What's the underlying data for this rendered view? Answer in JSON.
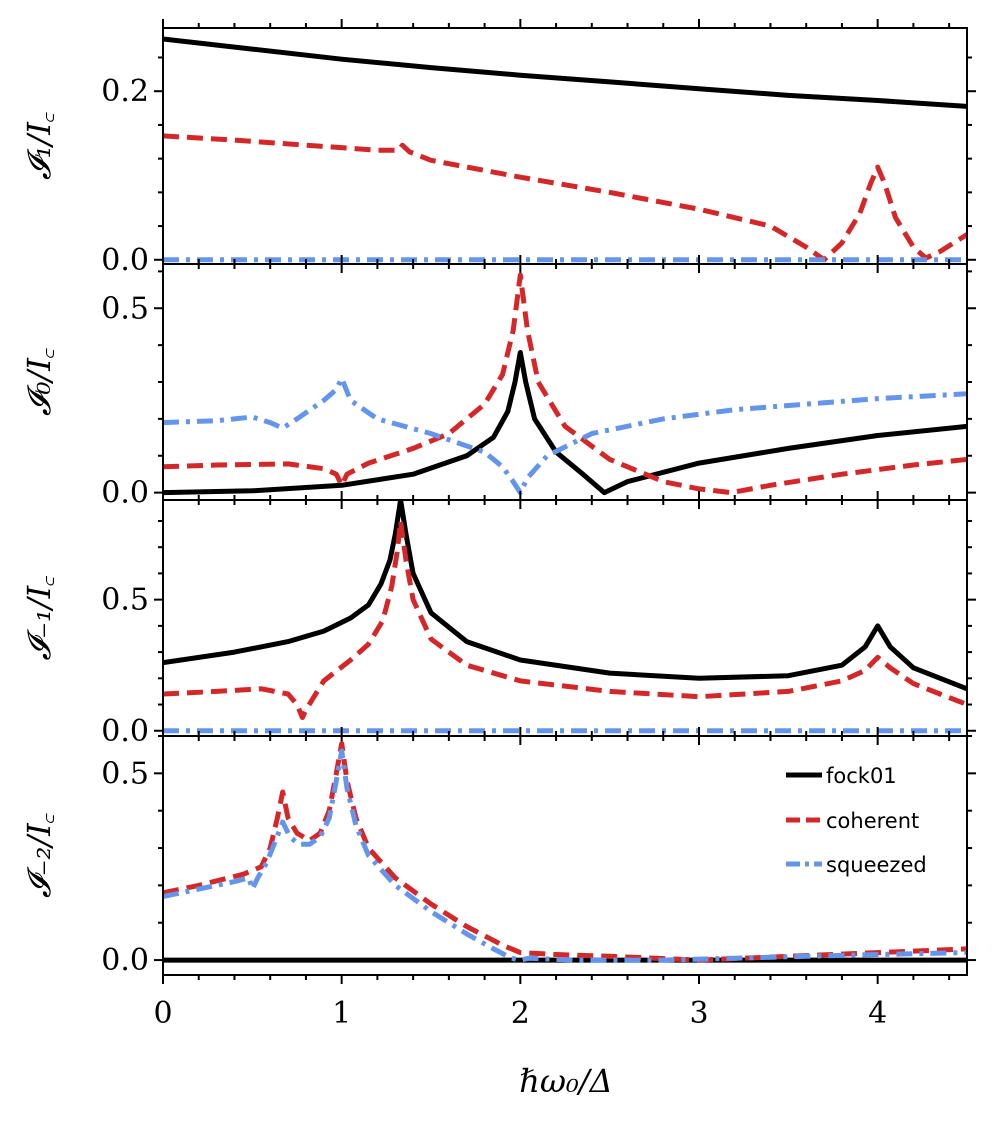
{
  "chart_data": {
    "type": "line",
    "title": "",
    "xlabel": "ℏω₀/Δ",
    "xlim": [
      0,
      4.5
    ],
    "x_ticks": [
      0,
      1,
      2,
      3,
      4
    ],
    "x_tick_labels": [
      "0",
      "1",
      "2",
      "3",
      "4"
    ],
    "legend": {
      "placement": "upper-right of bottom panel",
      "entries": [
        "fock01",
        "coherent",
        "squeezed"
      ]
    },
    "series_styles": [
      {
        "name": "fock01",
        "color": "#000000",
        "dash": "solid"
      },
      {
        "name": "coherent",
        "color": "#d62728",
        "dash": "dashed"
      },
      {
        "name": "squeezed",
        "color": "#6495ed",
        "dash": "dashdot"
      }
    ],
    "panels": [
      {
        "id": "I1",
        "ylabel": "𝓘₁/I꜀",
        "ylim": [
          -0.005,
          0.275
        ],
        "y_ticks": [
          0.0,
          0.2
        ],
        "y_tick_labels": [
          "0.0",
          "0.2"
        ],
        "series": [
          {
            "name": "fock01",
            "points": [
              [
                0,
                0.262
              ],
              [
                0.5,
                0.25
              ],
              [
                1,
                0.238
              ],
              [
                1.5,
                0.228
              ],
              [
                2,
                0.219
              ],
              [
                2.5,
                0.211
              ],
              [
                3,
                0.203
              ],
              [
                3.5,
                0.195
              ],
              [
                4,
                0.189
              ],
              [
                4.5,
                0.182
              ]
            ]
          },
          {
            "name": "coherent",
            "points": [
              [
                0,
                0.147
              ],
              [
                0.4,
                0.142
              ],
              [
                0.8,
                0.136
              ],
              [
                1.2,
                0.13
              ],
              [
                1.32,
                0.13
              ],
              [
                1.34,
                0.136
              ],
              [
                1.38,
                0.128
              ],
              [
                1.5,
                0.118
              ],
              [
                2,
                0.098
              ],
              [
                2.5,
                0.08
              ],
              [
                3,
                0.06
              ],
              [
                3.4,
                0.04
              ],
              [
                3.6,
                0.015
              ],
              [
                3.7,
                0.0
              ],
              [
                3.8,
                0.02
              ],
              [
                3.9,
                0.055
              ],
              [
                3.96,
                0.09
              ],
              [
                4.0,
                0.11
              ],
              [
                4.04,
                0.09
              ],
              [
                4.1,
                0.05
              ],
              [
                4.2,
                0.015
              ],
              [
                4.27,
                0.002
              ],
              [
                4.35,
                0.01
              ],
              [
                4.5,
                0.03
              ]
            ]
          },
          {
            "name": "squeezed",
            "points": [
              [
                0,
                0.0
              ],
              [
                4.5,
                0.0
              ]
            ]
          }
        ]
      },
      {
        "id": "I0",
        "ylabel": "𝓘₀/I꜀",
        "ylim": [
          -0.02,
          0.62
        ],
        "y_ticks": [
          0.0,
          0.5
        ],
        "y_tick_labels": [
          "0.0",
          "0.5"
        ],
        "series": [
          {
            "name": "fock01",
            "points": [
              [
                0,
                0.0
              ],
              [
                0.5,
                0.005
              ],
              [
                1,
                0.02
              ],
              [
                1.4,
                0.05
              ],
              [
                1.7,
                0.1
              ],
              [
                1.85,
                0.15
              ],
              [
                1.93,
                0.22
              ],
              [
                1.97,
                0.3
              ],
              [
                2.0,
                0.38
              ],
              [
                2.03,
                0.3
              ],
              [
                2.08,
                0.2
              ],
              [
                2.2,
                0.11
              ],
              [
                2.35,
                0.05
              ],
              [
                2.47,
                0.0
              ],
              [
                2.6,
                0.03
              ],
              [
                3,
                0.08
              ],
              [
                3.5,
                0.12
              ],
              [
                4,
                0.155
              ],
              [
                4.5,
                0.18
              ]
            ]
          },
          {
            "name": "coherent",
            "points": [
              [
                0,
                0.07
              ],
              [
                0.3,
                0.075
              ],
              [
                0.7,
                0.078
              ],
              [
                0.9,
                0.065
              ],
              [
                0.97,
                0.05
              ],
              [
                1.0,
                0.02
              ],
              [
                1.03,
                0.05
              ],
              [
                1.15,
                0.08
              ],
              [
                1.4,
                0.12
              ],
              [
                1.6,
                0.16
              ],
              [
                1.8,
                0.24
              ],
              [
                1.9,
                0.32
              ],
              [
                1.96,
                0.44
              ],
              [
                2.0,
                0.59
              ],
              [
                2.04,
                0.44
              ],
              [
                2.1,
                0.3
              ],
              [
                2.25,
                0.18
              ],
              [
                2.5,
                0.09
              ],
              [
                2.8,
                0.03
              ],
              [
                3.0,
                0.01
              ],
              [
                3.18,
                0.0
              ],
              [
                3.4,
                0.02
              ],
              [
                3.8,
                0.05
              ],
              [
                4.2,
                0.075
              ],
              [
                4.5,
                0.09
              ]
            ]
          },
          {
            "name": "squeezed",
            "points": [
              [
                0,
                0.19
              ],
              [
                0.3,
                0.195
              ],
              [
                0.5,
                0.205
              ],
              [
                0.6,
                0.19
              ],
              [
                0.67,
                0.175
              ],
              [
                0.75,
                0.2
              ],
              [
                0.9,
                0.25
              ],
              [
                0.97,
                0.28
              ],
              [
                1.0,
                0.31
              ],
              [
                1.05,
                0.25
              ],
              [
                1.2,
                0.2
              ],
              [
                1.5,
                0.16
              ],
              [
                1.8,
                0.11
              ],
              [
                1.9,
                0.07
              ],
              [
                1.96,
                0.03
              ],
              [
                2.0,
                0.0
              ],
              [
                2.04,
                0.04
              ],
              [
                2.15,
                0.1
              ],
              [
                2.4,
                0.16
              ],
              [
                2.8,
                0.2
              ],
              [
                3.2,
                0.225
              ],
              [
                3.6,
                0.24
              ],
              [
                4.0,
                0.255
              ],
              [
                4.5,
                0.268
              ]
            ]
          }
        ]
      },
      {
        "id": "I-1",
        "ylabel": "𝓘₋₁/I꜀",
        "ylim": [
          -0.02,
          0.88
        ],
        "y_ticks": [
          0.0,
          0.5
        ],
        "y_tick_labels": [
          "0.0",
          "0.5"
        ],
        "series": [
          {
            "name": "fock01",
            "points": [
              [
                0,
                0.26
              ],
              [
                0.4,
                0.3
              ],
              [
                0.7,
                0.34
              ],
              [
                0.9,
                0.38
              ],
              [
                1.05,
                0.43
              ],
              [
                1.15,
                0.48
              ],
              [
                1.22,
                0.56
              ],
              [
                1.27,
                0.65
              ],
              [
                1.3,
                0.75
              ],
              [
                1.33,
                0.88
              ],
              [
                1.36,
                0.75
              ],
              [
                1.4,
                0.6
              ],
              [
                1.5,
                0.45
              ],
              [
                1.7,
                0.34
              ],
              [
                2,
                0.27
              ],
              [
                2.5,
                0.22
              ],
              [
                3,
                0.2
              ],
              [
                3.5,
                0.21
              ],
              [
                3.8,
                0.25
              ],
              [
                3.93,
                0.32
              ],
              [
                4.0,
                0.4
              ],
              [
                4.07,
                0.32
              ],
              [
                4.2,
                0.24
              ],
              [
                4.35,
                0.2
              ],
              [
                4.5,
                0.16
              ]
            ]
          },
          {
            "name": "coherent",
            "points": [
              [
                0,
                0.14
              ],
              [
                0.3,
                0.15
              ],
              [
                0.55,
                0.16
              ],
              [
                0.7,
                0.14
              ],
              [
                0.75,
                0.1
              ],
              [
                0.78,
                0.05
              ],
              [
                0.8,
                0.08
              ],
              [
                0.9,
                0.19
              ],
              [
                1.05,
                0.27
              ],
              [
                1.15,
                0.33
              ],
              [
                1.23,
                0.42
              ],
              [
                1.28,
                0.55
              ],
              [
                1.31,
                0.68
              ],
              [
                1.33,
                0.8
              ],
              [
                1.36,
                0.65
              ],
              [
                1.4,
                0.5
              ],
              [
                1.5,
                0.35
              ],
              [
                1.7,
                0.25
              ],
              [
                2,
                0.19
              ],
              [
                2.5,
                0.15
              ],
              [
                3,
                0.13
              ],
              [
                3.5,
                0.15
              ],
              [
                3.8,
                0.19
              ],
              [
                3.93,
                0.23
              ],
              [
                4.0,
                0.28
              ],
              [
                4.07,
                0.24
              ],
              [
                4.2,
                0.18
              ],
              [
                4.5,
                0.1
              ]
            ]
          },
          {
            "name": "squeezed",
            "points": [
              [
                0,
                0.0
              ],
              [
                4.5,
                0.0
              ]
            ]
          }
        ]
      },
      {
        "id": "I-2",
        "ylabel": "𝓘₋₂/I꜀",
        "ylim": [
          -0.04,
          0.6
        ],
        "y_ticks": [
          0.0,
          0.5
        ],
        "y_tick_labels": [
          "0.0",
          "0.5"
        ],
        "series": [
          {
            "name": "fock01",
            "points": [
              [
                0,
                0.0
              ],
              [
                4.5,
                0.0
              ]
            ]
          },
          {
            "name": "coherent",
            "points": [
              [
                0,
                0.18
              ],
              [
                0.2,
                0.2
              ],
              [
                0.45,
                0.23
              ],
              [
                0.55,
                0.25
              ],
              [
                0.6,
                0.3
              ],
              [
                0.64,
                0.38
              ],
              [
                0.67,
                0.45
              ],
              [
                0.7,
                0.38
              ],
              [
                0.75,
                0.34
              ],
              [
                0.82,
                0.32
              ],
              [
                0.88,
                0.34
              ],
              [
                0.93,
                0.4
              ],
              [
                0.97,
                0.5
              ],
              [
                1.0,
                0.58
              ],
              [
                1.03,
                0.48
              ],
              [
                1.08,
                0.38
              ],
              [
                1.15,
                0.3
              ],
              [
                1.3,
                0.22
              ],
              [
                1.5,
                0.15
              ],
              [
                1.7,
                0.09
              ],
              [
                1.9,
                0.04
              ],
              [
                2.0,
                0.02
              ],
              [
                2.2,
                0.015
              ],
              [
                2.5,
                0.01
              ],
              [
                3,
                0.0
              ],
              [
                3.5,
                0.01
              ],
              [
                4,
                0.02
              ],
              [
                4.5,
                0.03
              ]
            ]
          },
          {
            "name": "squeezed",
            "points": [
              [
                0,
                0.17
              ],
              [
                0.2,
                0.19
              ],
              [
                0.4,
                0.21
              ],
              [
                0.48,
                0.22
              ],
              [
                0.5,
                0.19
              ],
              [
                0.53,
                0.22
              ],
              [
                0.58,
                0.26
              ],
              [
                0.63,
                0.32
              ],
              [
                0.67,
                0.37
              ],
              [
                0.71,
                0.33
              ],
              [
                0.76,
                0.31
              ],
              [
                0.82,
                0.31
              ],
              [
                0.88,
                0.33
              ],
              [
                0.93,
                0.38
              ],
              [
                0.97,
                0.48
              ],
              [
                1.0,
                0.56
              ],
              [
                1.03,
                0.46
              ],
              [
                1.08,
                0.36
              ],
              [
                1.15,
                0.28
              ],
              [
                1.3,
                0.2
              ],
              [
                1.5,
                0.13
              ],
              [
                1.7,
                0.07
              ],
              [
                1.85,
                0.03
              ],
              [
                1.95,
                0.005
              ],
              [
                2.0,
                0.0
              ],
              [
                2.05,
                0.005
              ],
              [
                2.3,
                0.0
              ],
              [
                2.8,
                0.0
              ],
              [
                3.2,
                0.005
              ],
              [
                3.6,
                0.01
              ],
              [
                4,
                0.015
              ],
              [
                4.5,
                0.02
              ]
            ]
          }
        ]
      }
    ]
  }
}
